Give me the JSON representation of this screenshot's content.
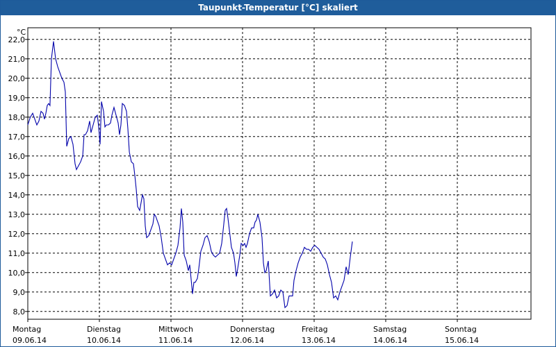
{
  "window": {
    "title": "Taupunkt-Temperatur [°C] skaliert"
  },
  "colors": {
    "titlebar": "#1f5d9b",
    "line": "#0000aa",
    "grid": "#000000"
  },
  "chart_data": {
    "type": "line",
    "title": "Taupunkt-Temperatur [°C] skaliert",
    "ylabel": "°C",
    "xlabel": "",
    "ylim": [
      7.6,
      22.6
    ],
    "xlim": [
      0,
      7
    ],
    "y_ticks": [
      "8,0",
      "9,0",
      "10,0",
      "11,0",
      "12,0",
      "13,0",
      "14,0",
      "15,0",
      "16,0",
      "17,0",
      "18,0",
      "19,0",
      "20,0",
      "21,0",
      "22,0"
    ],
    "x_ticks": [
      {
        "day": "Montag",
        "date": "09.06.14"
      },
      {
        "day": "Dienstag",
        "date": "10.06.14"
      },
      {
        "day": "Mittwoch",
        "date": "11.06.14"
      },
      {
        "day": "Donnerstag",
        "date": "12.06.14"
      },
      {
        "day": "Freitag",
        "date": "13.06.14"
      },
      {
        "day": "Samstag",
        "date": "14.06.14"
      },
      {
        "day": "Sonntag",
        "date": "15.06.14"
      }
    ],
    "grid": true,
    "series": [
      {
        "values": [
          [
            0.0,
            17.6
          ],
          [
            0.035,
            18.0
          ],
          [
            0.068,
            18.2
          ],
          [
            0.097,
            17.9
          ],
          [
            0.126,
            17.6
          ],
          [
            0.155,
            17.8
          ],
          [
            0.184,
            18.3
          ],
          [
            0.213,
            18.2
          ],
          [
            0.233,
            17.9
          ],
          [
            0.252,
            18.2
          ],
          [
            0.272,
            18.6
          ],
          [
            0.291,
            18.7
          ],
          [
            0.31,
            18.6
          ],
          [
            0.33,
            21.0
          ],
          [
            0.359,
            21.9
          ],
          [
            0.388,
            21.0
          ],
          [
            0.417,
            20.6
          ],
          [
            0.447,
            20.3
          ],
          [
            0.476,
            20.0
          ],
          [
            0.505,
            19.8
          ],
          [
            0.524,
            19.3
          ],
          [
            0.544,
            16.5
          ],
          [
            0.573,
            16.9
          ],
          [
            0.602,
            17.0
          ],
          [
            0.631,
            16.6
          ],
          [
            0.66,
            15.6
          ],
          [
            0.68,
            15.3
          ],
          [
            0.709,
            15.5
          ],
          [
            0.738,
            15.7
          ],
          [
            0.767,
            16.0
          ],
          [
            0.786,
            17.1
          ],
          [
            0.806,
            17.1
          ],
          [
            0.835,
            17.3
          ],
          [
            0.864,
            17.8
          ],
          [
            0.883,
            17.2
          ],
          [
            0.913,
            17.6
          ],
          [
            0.942,
            18.0
          ],
          [
            0.971,
            18.1
          ],
          [
            0.99,
            17.5
          ],
          [
            1.01,
            16.6
          ],
          [
            1.029,
            18.8
          ],
          [
            1.058,
            18.3
          ],
          [
            1.078,
            17.5
          ],
          [
            1.097,
            17.6
          ],
          [
            1.126,
            17.6
          ],
          [
            1.155,
            17.7
          ],
          [
            1.175,
            18.1
          ],
          [
            1.204,
            18.5
          ],
          [
            1.233,
            18.1
          ],
          [
            1.262,
            17.7
          ],
          [
            1.282,
            17.1
          ],
          [
            1.301,
            17.6
          ],
          [
            1.32,
            18.7
          ],
          [
            1.35,
            18.6
          ],
          [
            1.379,
            18.3
          ],
          [
            1.398,
            17.4
          ],
          [
            1.418,
            16.2
          ],
          [
            1.447,
            15.7
          ],
          [
            1.476,
            15.6
          ],
          [
            1.495,
            15.0
          ],
          [
            1.515,
            14.3
          ],
          [
            1.534,
            13.4
          ],
          [
            1.563,
            13.2
          ],
          [
            1.583,
            13.6
          ],
          [
            1.602,
            14.0
          ],
          [
            1.621,
            13.8
          ],
          [
            1.641,
            12.4
          ],
          [
            1.66,
            11.8
          ],
          [
            1.689,
            11.9
          ],
          [
            1.718,
            12.2
          ],
          [
            1.748,
            12.5
          ],
          [
            1.767,
            13.0
          ],
          [
            1.786,
            12.9
          ],
          [
            1.806,
            12.7
          ],
          [
            1.835,
            12.4
          ],
          [
            1.864,
            11.8
          ],
          [
            1.893,
            11.0
          ],
          [
            1.922,
            10.7
          ],
          [
            1.951,
            10.4
          ],
          [
            1.981,
            10.5
          ],
          [
            2.01,
            10.4
          ],
          [
            2.039,
            10.7
          ],
          [
            2.068,
            11.0
          ],
          [
            2.097,
            11.4
          ],
          [
            2.126,
            12.3
          ],
          [
            2.146,
            13.3
          ],
          [
            2.165,
            12.6
          ],
          [
            2.184,
            10.9
          ],
          [
            2.214,
            10.6
          ],
          [
            2.243,
            10.1
          ],
          [
            2.262,
            10.4
          ],
          [
            2.281,
            9.7
          ],
          [
            2.301,
            8.9
          ],
          [
            2.32,
            9.5
          ],
          [
            2.34,
            9.5
          ],
          [
            2.369,
            9.7
          ],
          [
            2.388,
            10.2
          ],
          [
            2.417,
            11.1
          ],
          [
            2.447,
            11.4
          ],
          [
            2.476,
            11.8
          ],
          [
            2.505,
            11.9
          ],
          [
            2.534,
            11.6
          ],
          [
            2.563,
            11.1
          ],
          [
            2.592,
            10.9
          ],
          [
            2.621,
            10.8
          ],
          [
            2.65,
            10.9
          ],
          [
            2.68,
            11.0
          ],
          [
            2.709,
            11.5
          ],
          [
            2.738,
            12.5
          ],
          [
            2.757,
            13.2
          ],
          [
            2.777,
            13.3
          ],
          [
            2.796,
            12.8
          ],
          [
            2.816,
            12.2
          ],
          [
            2.845,
            11.3
          ],
          [
            2.874,
            11.0
          ],
          [
            2.893,
            10.5
          ],
          [
            2.913,
            9.8
          ],
          [
            2.932,
            10.2
          ],
          [
            2.961,
            10.9
          ],
          [
            2.981,
            11.5
          ],
          [
            3.01,
            11.4
          ],
          [
            3.029,
            11.5
          ],
          [
            3.049,
            11.3
          ],
          [
            3.068,
            11.5
          ],
          [
            3.097,
            12.0
          ],
          [
            3.126,
            12.3
          ],
          [
            3.155,
            12.3
          ],
          [
            3.175,
            12.6
          ],
          [
            3.194,
            12.7
          ],
          [
            3.214,
            13.0
          ],
          [
            3.243,
            12.6
          ],
          [
            3.272,
            11.8
          ],
          [
            3.291,
            10.5
          ],
          [
            3.311,
            10.0
          ],
          [
            3.33,
            10.1
          ],
          [
            3.359,
            10.6
          ],
          [
            3.388,
            8.8
          ],
          [
            3.417,
            8.9
          ],
          [
            3.447,
            9.1
          ],
          [
            3.476,
            8.7
          ],
          [
            3.505,
            8.8
          ],
          [
            3.534,
            9.1
          ],
          [
            3.563,
            9.0
          ],
          [
            3.592,
            8.2
          ],
          [
            3.621,
            8.3
          ],
          [
            3.65,
            8.8
          ],
          [
            3.68,
            8.8
          ],
          [
            3.699,
            8.8
          ],
          [
            3.718,
            9.6
          ],
          [
            3.748,
            10.1
          ],
          [
            3.777,
            10.5
          ],
          [
            3.806,
            10.8
          ],
          [
            3.835,
            11.0
          ],
          [
            3.864,
            11.3
          ],
          [
            3.893,
            11.2
          ],
          [
            3.922,
            11.2
          ],
          [
            3.951,
            11.1
          ],
          [
            3.981,
            11.3
          ],
          [
            4.01,
            11.4
          ],
          [
            4.039,
            11.3
          ],
          [
            4.068,
            11.2
          ],
          [
            4.097,
            11.0
          ],
          [
            4.126,
            10.8
          ],
          [
            4.155,
            10.7
          ],
          [
            4.184,
            10.4
          ],
          [
            4.214,
            9.9
          ],
          [
            4.243,
            9.5
          ],
          [
            4.272,
            8.7
          ],
          [
            4.301,
            8.8
          ],
          [
            4.33,
            8.6
          ],
          [
            4.359,
            9.0
          ],
          [
            4.388,
            9.3
          ],
          [
            4.417,
            9.6
          ],
          [
            4.447,
            10.3
          ],
          [
            4.476,
            9.9
          ],
          [
            4.505,
            10.8
          ],
          [
            4.534,
            11.6
          ]
        ]
      }
    ]
  }
}
